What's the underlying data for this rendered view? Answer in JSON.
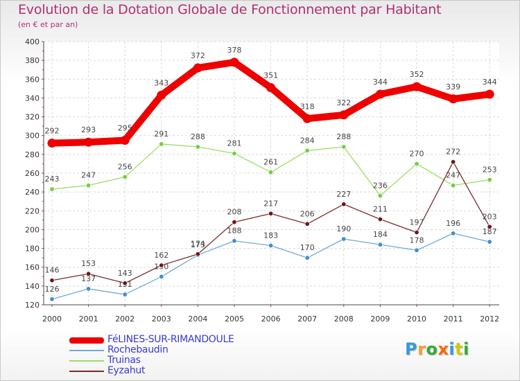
{
  "header": {
    "title": "Evolution de la Dotation Globale de Fonctionnement par Habitant",
    "subtitle": "(en € et par an)"
  },
  "chart_data": {
    "type": "line",
    "title": "Evolution de la Dotation Globale de Fonctionnement par Habitant",
    "subtitle": "(en € et par an)",
    "xlabel": "",
    "ylabel": "",
    "x": [
      "2000",
      "2001",
      "2002",
      "2003",
      "2004",
      "2005",
      "2006",
      "2007",
      "2008",
      "2009",
      "2010",
      "2011",
      "2012"
    ],
    "ylim": [
      120,
      400
    ],
    "yticks": [
      120,
      140,
      160,
      180,
      200,
      220,
      240,
      260,
      280,
      300,
      320,
      340,
      360,
      380,
      400
    ],
    "grid": true,
    "legend_position": "bottom-left",
    "series": [
      {
        "name": "FéLINES-SUR-RIMANDOULE",
        "color": "#ee0000",
        "line_width": 10,
        "values": [
          292,
          293,
          295,
          343,
          372,
          378,
          351,
          318,
          322,
          344,
          352,
          339,
          344
        ]
      },
      {
        "name": "Rochebaudin",
        "color": "#6fa8d6",
        "point_color": "#3f8fd2",
        "line_width": 1.3,
        "values": [
          126,
          137,
          131,
          150,
          173,
          188,
          183,
          170,
          190,
          184,
          178,
          196,
          187
        ]
      },
      {
        "name": "Truinas",
        "color": "#99dd66",
        "point_color": "#77cc44",
        "line_width": 1.3,
        "values": [
          243,
          247,
          256,
          291,
          288,
          281,
          261,
          284,
          288,
          236,
          270,
          247,
          253
        ]
      },
      {
        "name": "Eyzahut",
        "color": "#7a2a2a",
        "point_color": "#6a1a1a",
        "line_width": 1.3,
        "values": [
          146,
          153,
          143,
          162,
          174,
          208,
          217,
          206,
          227,
          211,
          197,
          272,
          203
        ]
      }
    ]
  },
  "logo": {
    "letters": [
      "P",
      "r",
      "o",
      "x",
      "i",
      "t",
      "i"
    ],
    "colors": [
      "#3399dd",
      "#ff9933",
      "#33aa33",
      "#ff6600",
      "#3399dd",
      "#cccc00",
      "#33aa33"
    ]
  }
}
